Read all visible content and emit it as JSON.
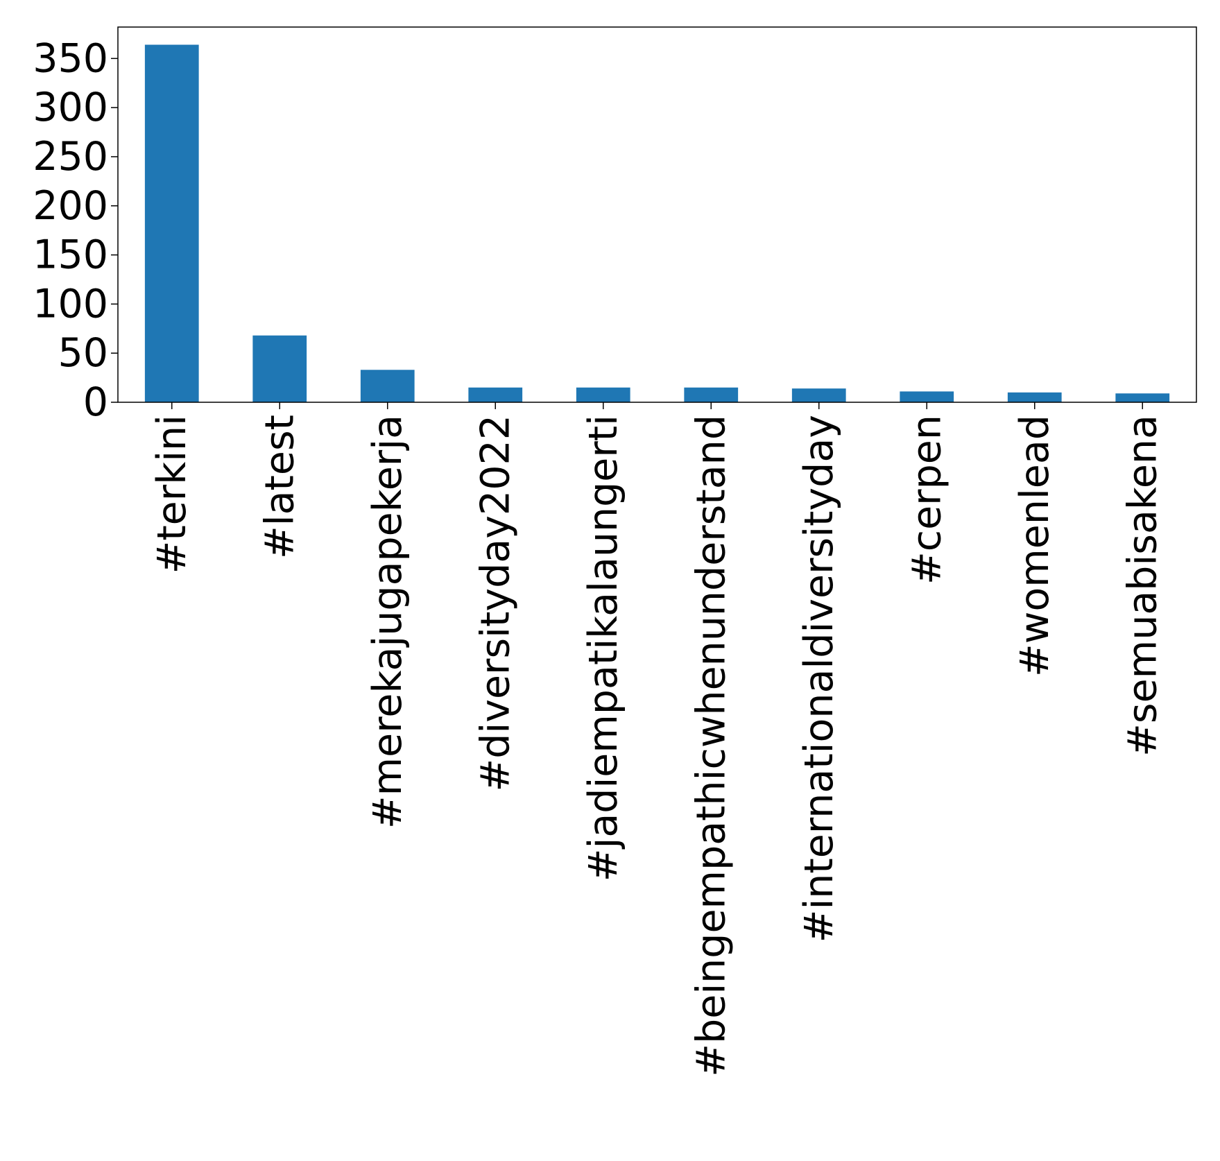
{
  "chart_data": {
    "type": "bar",
    "categories": [
      "#terkini",
      "#latest",
      "#merekajugapekerja",
      "#diversityday2022",
      "#jadiempatikalaungerti",
      "#beingempathicwhenunderstand",
      "#internationaldiversityday",
      "#cerpen",
      "#womenlead",
      "#semuabisakena"
    ],
    "values": [
      364,
      68,
      33,
      15,
      15,
      15,
      14,
      11,
      10,
      9
    ],
    "yticks": [
      0,
      50,
      100,
      150,
      200,
      250,
      300,
      350
    ],
    "ylim": [
      0,
      382
    ],
    "grid": false,
    "bar_color": "#1f77b4"
  }
}
